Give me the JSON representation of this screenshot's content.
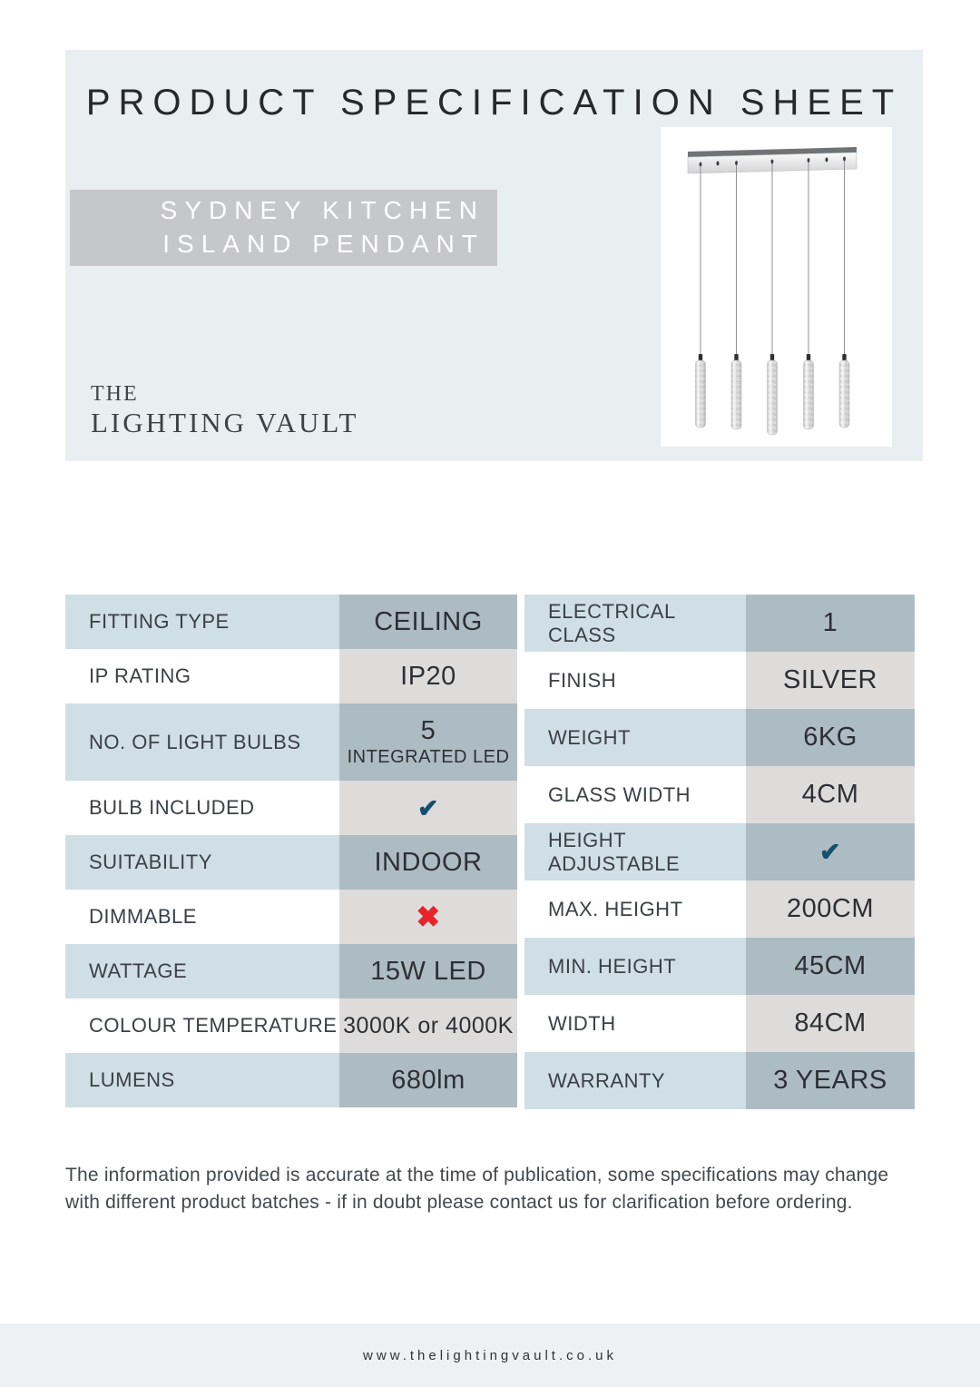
{
  "header": {
    "title": "PRODUCT SPECIFICATION SHEET",
    "product_name": [
      "SYDNEY KITCHEN",
      "ISLAND PENDANT"
    ]
  },
  "logo": {
    "line1": "THE",
    "line2": "LIGHTING VAULT"
  },
  "product_image": {
    "illustration": "five-light-bar-pendant"
  },
  "spec_tables": {
    "left": [
      {
        "label": "FITTING TYPE",
        "value": "CEILING"
      },
      {
        "label": "IP RATING",
        "value": "IP20"
      },
      {
        "label": "NO. OF LIGHT BULBS",
        "value": "5",
        "value2": "INTEGRATED LED"
      },
      {
        "label": "BULB INCLUDED",
        "value": "✔",
        "kind": "check"
      },
      {
        "label": "SUITABILITY",
        "value": "INDOOR"
      },
      {
        "label": "DIMMABLE",
        "value": "✖",
        "kind": "cross"
      },
      {
        "label": "WATTAGE",
        "value": "15W LED"
      },
      {
        "label": "COLOUR TEMPERATURE",
        "value": "3000K or 4000K"
      },
      {
        "label": "LUMENS",
        "value": "680lm"
      }
    ],
    "right": [
      {
        "label": "ELECTRICAL CLASS",
        "value": "1"
      },
      {
        "label": "FINISH",
        "value": "SILVER"
      },
      {
        "label": "WEIGHT",
        "value": "6KG"
      },
      {
        "label": "GLASS WIDTH",
        "value": "4CM"
      },
      {
        "label": "HEIGHT ADJUSTABLE",
        "value": "✔",
        "kind": "check"
      },
      {
        "label": "MAX. HEIGHT",
        "value": "200CM"
      },
      {
        "label": "MIN. HEIGHT",
        "value": "45CM"
      },
      {
        "label": "WIDTH",
        "value": "84CM"
      },
      {
        "label": "WARRANTY",
        "value": "3 YEARS"
      }
    ]
  },
  "colors": {
    "panel": "#e9eef1",
    "product_name_box": "#c6c7c9",
    "label_blue": "#cfdfe5",
    "value_blue": "#adbbc3",
    "value_gray": "#dedcdb",
    "check": "#14506e",
    "cross": "#e8232a",
    "footer_bar": "#edf1f4"
  },
  "disclaimer": "The information provided is accurate at the time of publication, some specifications may change with different product batches - if in doubt please contact us for clarification before ordering.",
  "footer": {
    "website": "www.thelightingvault.co.uk"
  }
}
